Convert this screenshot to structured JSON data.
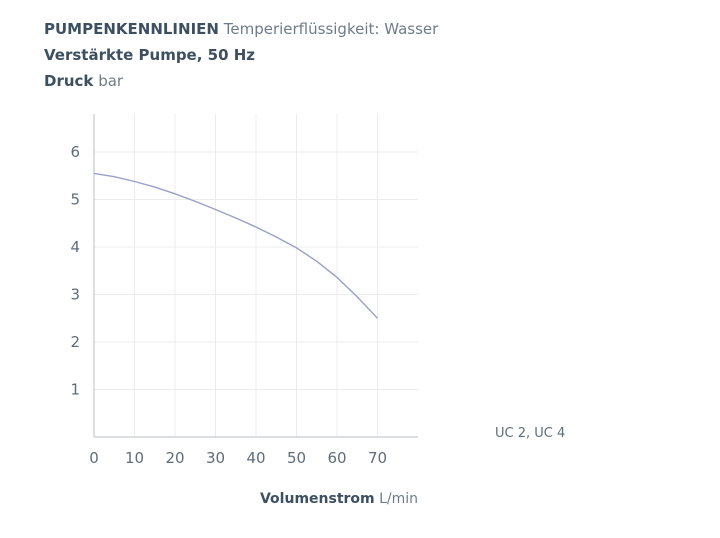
{
  "header": {
    "title_bold": "PUMPENKENNLINIEN",
    "title_rest": "Temperierflüssigkeit: Wasser",
    "subtitle": "Verstärkte Pumpe, 50 Hz",
    "ylabel_bold": "Druck",
    "ylabel_unit": "bar"
  },
  "chart_data": {
    "type": "line",
    "title": "PUMPENKENNLINIEN Temperierflüssigkeit: Wasser",
    "subtitle": "Verstärkte Pumpe, 50 Hz",
    "ylabel": "Druck bar",
    "xlabel": "Volumenstrom L/min",
    "xlim": [
      0,
      80
    ],
    "ylim": [
      0,
      6.8
    ],
    "xticks": [
      0,
      10,
      20,
      30,
      40,
      50,
      60,
      70
    ],
    "yticks": [
      1,
      2,
      3,
      4,
      5,
      6
    ],
    "grid": true,
    "series": [
      {
        "name": "UC 2, UC 4",
        "color": "#9a9fca",
        "x": [
          0,
          5,
          10,
          15,
          20,
          25,
          30,
          35,
          40,
          45,
          50,
          55,
          60,
          65,
          70
        ],
        "y": [
          5.55,
          5.48,
          5.38,
          5.26,
          5.12,
          4.96,
          4.79,
          4.61,
          4.42,
          4.21,
          3.98,
          3.7,
          3.36,
          2.95,
          2.5
        ]
      }
    ],
    "legend_position": "right",
    "xlabel_bold": "Volumenstrom",
    "xlabel_unit": "L/min"
  }
}
